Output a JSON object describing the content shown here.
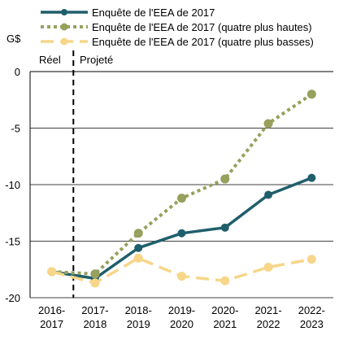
{
  "chart_data": {
    "type": "line",
    "title": "",
    "ylabel": "G$",
    "xlabel": "",
    "ylim": [
      -20,
      0
    ],
    "y_ticks": [
      0,
      -5,
      -10,
      -15,
      -20
    ],
    "categories": [
      [
        "2016-",
        "2017"
      ],
      [
        "2017-",
        "2018"
      ],
      [
        "2018-",
        "2019"
      ],
      [
        "2019-",
        "2020"
      ],
      [
        "2020-",
        "2021"
      ],
      [
        "2021-",
        "2022"
      ],
      [
        "2022-",
        "2023"
      ]
    ],
    "annotations": {
      "actual": "Réel",
      "projected": "Projeté"
    },
    "legend_position": "top",
    "grid": "horizontal",
    "series": [
      {
        "name": "Enquête de l'EEA  de 2017",
        "color": "#1f5f6b",
        "style": "solid",
        "values": [
          -17.7,
          -18.3,
          -15.6,
          -14.3,
          -13.8,
          -10.9,
          -9.4
        ]
      },
      {
        "name": "Enquête de l'EEA  de 2017 (quatre plus hautes)",
        "color": "#97a05c",
        "style": "dotted",
        "values": [
          -17.7,
          -17.9,
          -14.3,
          -11.2,
          -9.5,
          -4.6,
          -2.0
        ]
      },
      {
        "name": "Enquête de l'EEA  de 2017 (quatre plus basses)",
        "color": "#f7d68a",
        "style": "dashed",
        "values": [
          -17.7,
          -18.7,
          -16.5,
          -18.1,
          -18.5,
          -17.3,
          -16.6
        ]
      }
    ]
  }
}
